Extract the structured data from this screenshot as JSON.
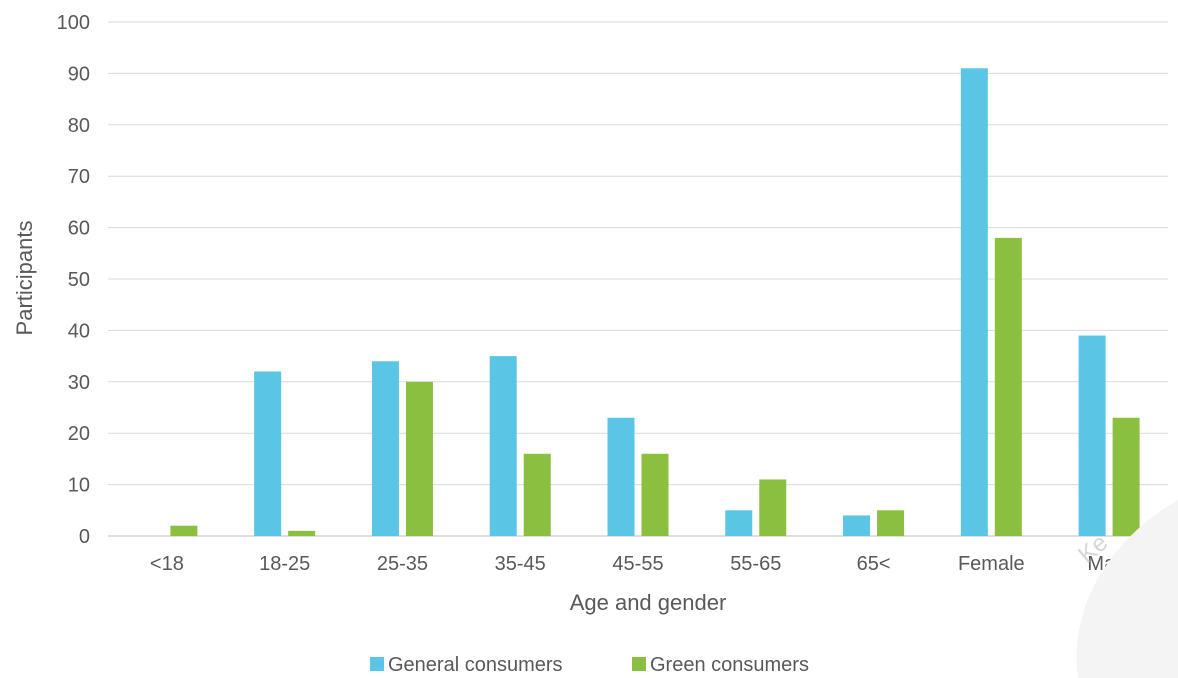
{
  "chart_data": {
    "type": "bar",
    "title": "",
    "xlabel": "Age and gender",
    "ylabel": "Participants",
    "ylim": [
      0,
      100
    ],
    "yticks": [
      0,
      10,
      20,
      30,
      40,
      50,
      60,
      70,
      80,
      90,
      100
    ],
    "categories": [
      "<18",
      "18-25",
      "25-35",
      "35-45",
      "45-55",
      "55-65",
      "65<",
      "Female",
      "Male"
    ],
    "series": [
      {
        "name": "General consumers",
        "color": "#5bc5e6",
        "values": [
          0,
          32,
          34,
          35,
          23,
          5,
          4,
          91,
          39
        ]
      },
      {
        "name": "Green consumers",
        "color": "#8bbf3f",
        "values": [
          2,
          1,
          30,
          16,
          16,
          11,
          5,
          58,
          23
        ]
      }
    ],
    "grid": true,
    "legend_position": "bottom"
  }
}
